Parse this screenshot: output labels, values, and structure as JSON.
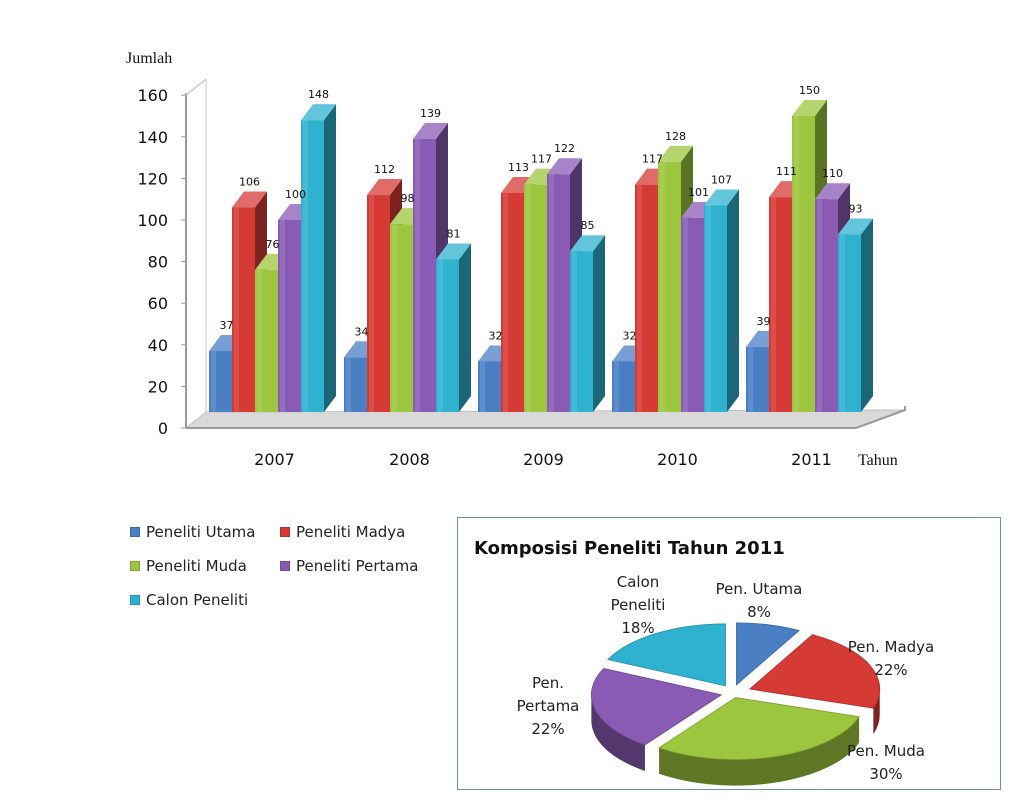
{
  "chart_data": [
    {
      "type": "bar",
      "title": "",
      "ylabel": "Jumlah",
      "xlabel": "Tahun",
      "ylim": [
        0,
        160
      ],
      "yticks": [
        "0",
        "20",
        "40",
        "60",
        "80",
        "100",
        "120",
        "140",
        "160"
      ],
      "categories": [
        "2007",
        "2008",
        "2009",
        "2010",
        "2011"
      ],
      "series": [
        {
          "name": "Peneliti Utama",
          "color": "#4a7fc4",
          "values": [
            37,
            34,
            32,
            32,
            39
          ]
        },
        {
          "name": "Peneliti Madya",
          "color": "#d63a35",
          "values": [
            106,
            112,
            113,
            117,
            111
          ]
        },
        {
          "name": "Peneliti Muda",
          "color": "#9cc63d",
          "values": [
            76,
            98,
            117,
            128,
            150
          ]
        },
        {
          "name": "Peneliti Pertama",
          "color": "#8a5bb5",
          "values": [
            100,
            139,
            122,
            101,
            110
          ]
        },
        {
          "name": "Calon Peneliti",
          "color": "#2fb2cf",
          "values": [
            148,
            81,
            85,
            107,
            93
          ]
        }
      ],
      "value_labels": [
        [
          "37",
          "106",
          "76",
          "100",
          "148"
        ],
        [
          "34",
          "112",
          "98",
          "139",
          "81"
        ],
        [
          "32",
          "113",
          "117",
          "122",
          "85"
        ],
        [
          "32",
          "117",
          "128",
          "101",
          "107"
        ],
        [
          "39",
          "111",
          "150",
          "110",
          "93"
        ]
      ],
      "legend": "bottom-left"
    },
    {
      "type": "pie",
      "title": "Komposisi Peneliti Tahun 2011",
      "slices": [
        {
          "lines": [
            "Pen. Utama",
            "8%"
          ],
          "value": 8,
          "color": "#4a7fc4"
        },
        {
          "lines": [
            "Pen. Madya",
            "22%"
          ],
          "value": 22,
          "color": "#d63a35"
        },
        {
          "lines": [
            "Pen. Muda",
            "30%"
          ],
          "value": 30,
          "color": "#9cc63d"
        },
        {
          "lines": [
            "Pen.",
            "Pertama",
            "22%"
          ],
          "value": 22,
          "color": "#8a5bb5"
        },
        {
          "lines": [
            "Calon",
            "Peneliti",
            "18%"
          ],
          "value": 18,
          "color": "#2fb2cf"
        }
      ]
    }
  ]
}
